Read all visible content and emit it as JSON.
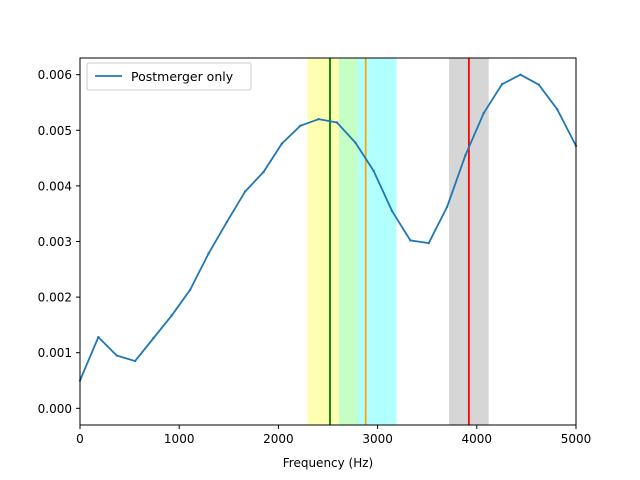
{
  "chart_data": {
    "type": "line",
    "title": "",
    "xlabel": "Frequency (Hz)",
    "ylabel": "",
    "xlim": [
      0,
      5000
    ],
    "ylim": [
      -0.0003,
      0.0063
    ],
    "grid": false,
    "legend": {
      "placement": "top-left",
      "entries": [
        "Postmerger only"
      ]
    },
    "x_ticks": [
      0,
      1000,
      2000,
      3000,
      4000,
      5000
    ],
    "x_tick_labels": [
      "0",
      "1000",
      "2000",
      "3000",
      "4000",
      "5000"
    ],
    "y_ticks": [
      0,
      0.001,
      0.002,
      0.003,
      0.004,
      0.005,
      0.006
    ],
    "y_tick_labels": [
      "0.000",
      "0.001",
      "0.002",
      "0.003",
      "0.004",
      "0.005",
      "0.006"
    ],
    "series": [
      {
        "name": "Postmerger only",
        "color": "#1f77b4",
        "x": [
          0,
          185,
          370,
          555,
          740,
          925,
          1110,
          1295,
          1480,
          1665,
          1850,
          2035,
          2220,
          2405,
          2590,
          2775,
          2960,
          3145,
          3330,
          3515,
          3700,
          3885,
          4070,
          4255,
          4440,
          4625,
          4810,
          5000
        ],
        "y": [
          0.0005,
          0.00128,
          0.00095,
          0.00085,
          0.00126,
          0.00167,
          0.00213,
          0.00278,
          0.00335,
          0.0039,
          0.00425,
          0.00476,
          0.00508,
          0.0052,
          0.00514,
          0.00478,
          0.00427,
          0.00355,
          0.00302,
          0.00297,
          0.00362,
          0.00455,
          0.00531,
          0.00583,
          0.006,
          0.00582,
          0.00538,
          0.00472
        ]
      }
    ],
    "bands": [
      {
        "x0": 2290,
        "x1": 2610,
        "color": "#ffff00",
        "opacity": 0.3
      },
      {
        "x0": 2610,
        "x1": 2800,
        "color": "#7fff7f",
        "opacity": 0.45
      },
      {
        "x0": 2800,
        "x1": 3190,
        "color": "#00ffff",
        "opacity": 0.3
      },
      {
        "x0": 3720,
        "x1": 4120,
        "color": "#808080",
        "opacity": 0.32
      }
    ],
    "vlines": [
      {
        "x": 2520,
        "color": "#008000"
      },
      {
        "x": 2880,
        "color": "#ffa500"
      },
      {
        "x": 3920,
        "color": "#ff0000"
      }
    ]
  }
}
